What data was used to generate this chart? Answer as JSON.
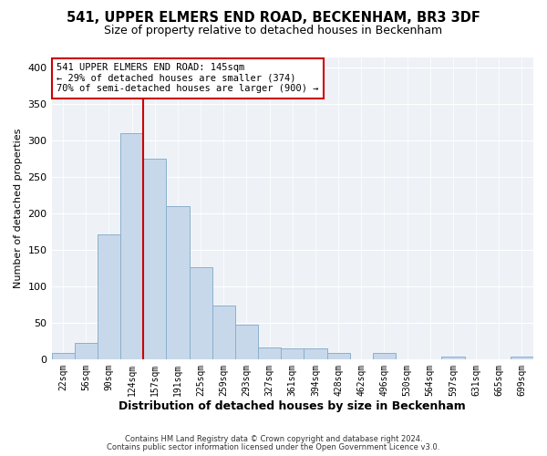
{
  "title": "541, UPPER ELMERS END ROAD, BECKENHAM, BR3 3DF",
  "subtitle": "Size of property relative to detached houses in Beckenham",
  "xlabel": "Distribution of detached houses by size in Beckenham",
  "ylabel": "Number of detached properties",
  "bin_labels": [
    "22sqm",
    "56sqm",
    "90sqm",
    "124sqm",
    "157sqm",
    "191sqm",
    "225sqm",
    "259sqm",
    "293sqm",
    "327sqm",
    "361sqm",
    "394sqm",
    "428sqm",
    "462sqm",
    "496sqm",
    "530sqm",
    "564sqm",
    "597sqm",
    "631sqm",
    "665sqm",
    "699sqm"
  ],
  "bar_values": [
    8,
    22,
    172,
    310,
    275,
    210,
    126,
    74,
    47,
    16,
    15,
    15,
    9,
    0,
    8,
    0,
    0,
    3,
    0,
    0,
    3
  ],
  "bar_color": "#c8d8eb",
  "bar_edge_color": "#8ab0cc",
  "vline_color": "#cc0000",
  "annotation_box_text": "541 UPPER ELMERS END ROAD: 145sqm\n← 29% of detached houses are smaller (374)\n70% of semi-detached houses are larger (900) →",
  "annotation_box_color": "#cc0000",
  "annotation_box_fill": "#ffffff",
  "ylim": [
    0,
    415
  ],
  "yticks": [
    0,
    50,
    100,
    150,
    200,
    250,
    300,
    350,
    400
  ],
  "footer1": "Contains HM Land Registry data © Crown copyright and database right 2024.",
  "footer2": "Contains public sector information licensed under the Open Government Licence v3.0.",
  "bg_color": "#ffffff",
  "plot_bg_color": "#eef2f7",
  "grid_color": "#ffffff",
  "title_fontsize": 10.5,
  "subtitle_fontsize": 9,
  "ylabel_fontsize": 8,
  "xlabel_fontsize": 9,
  "tick_fontsize": 7,
  "annotation_fontsize": 7.5,
  "footer_fontsize": 6
}
